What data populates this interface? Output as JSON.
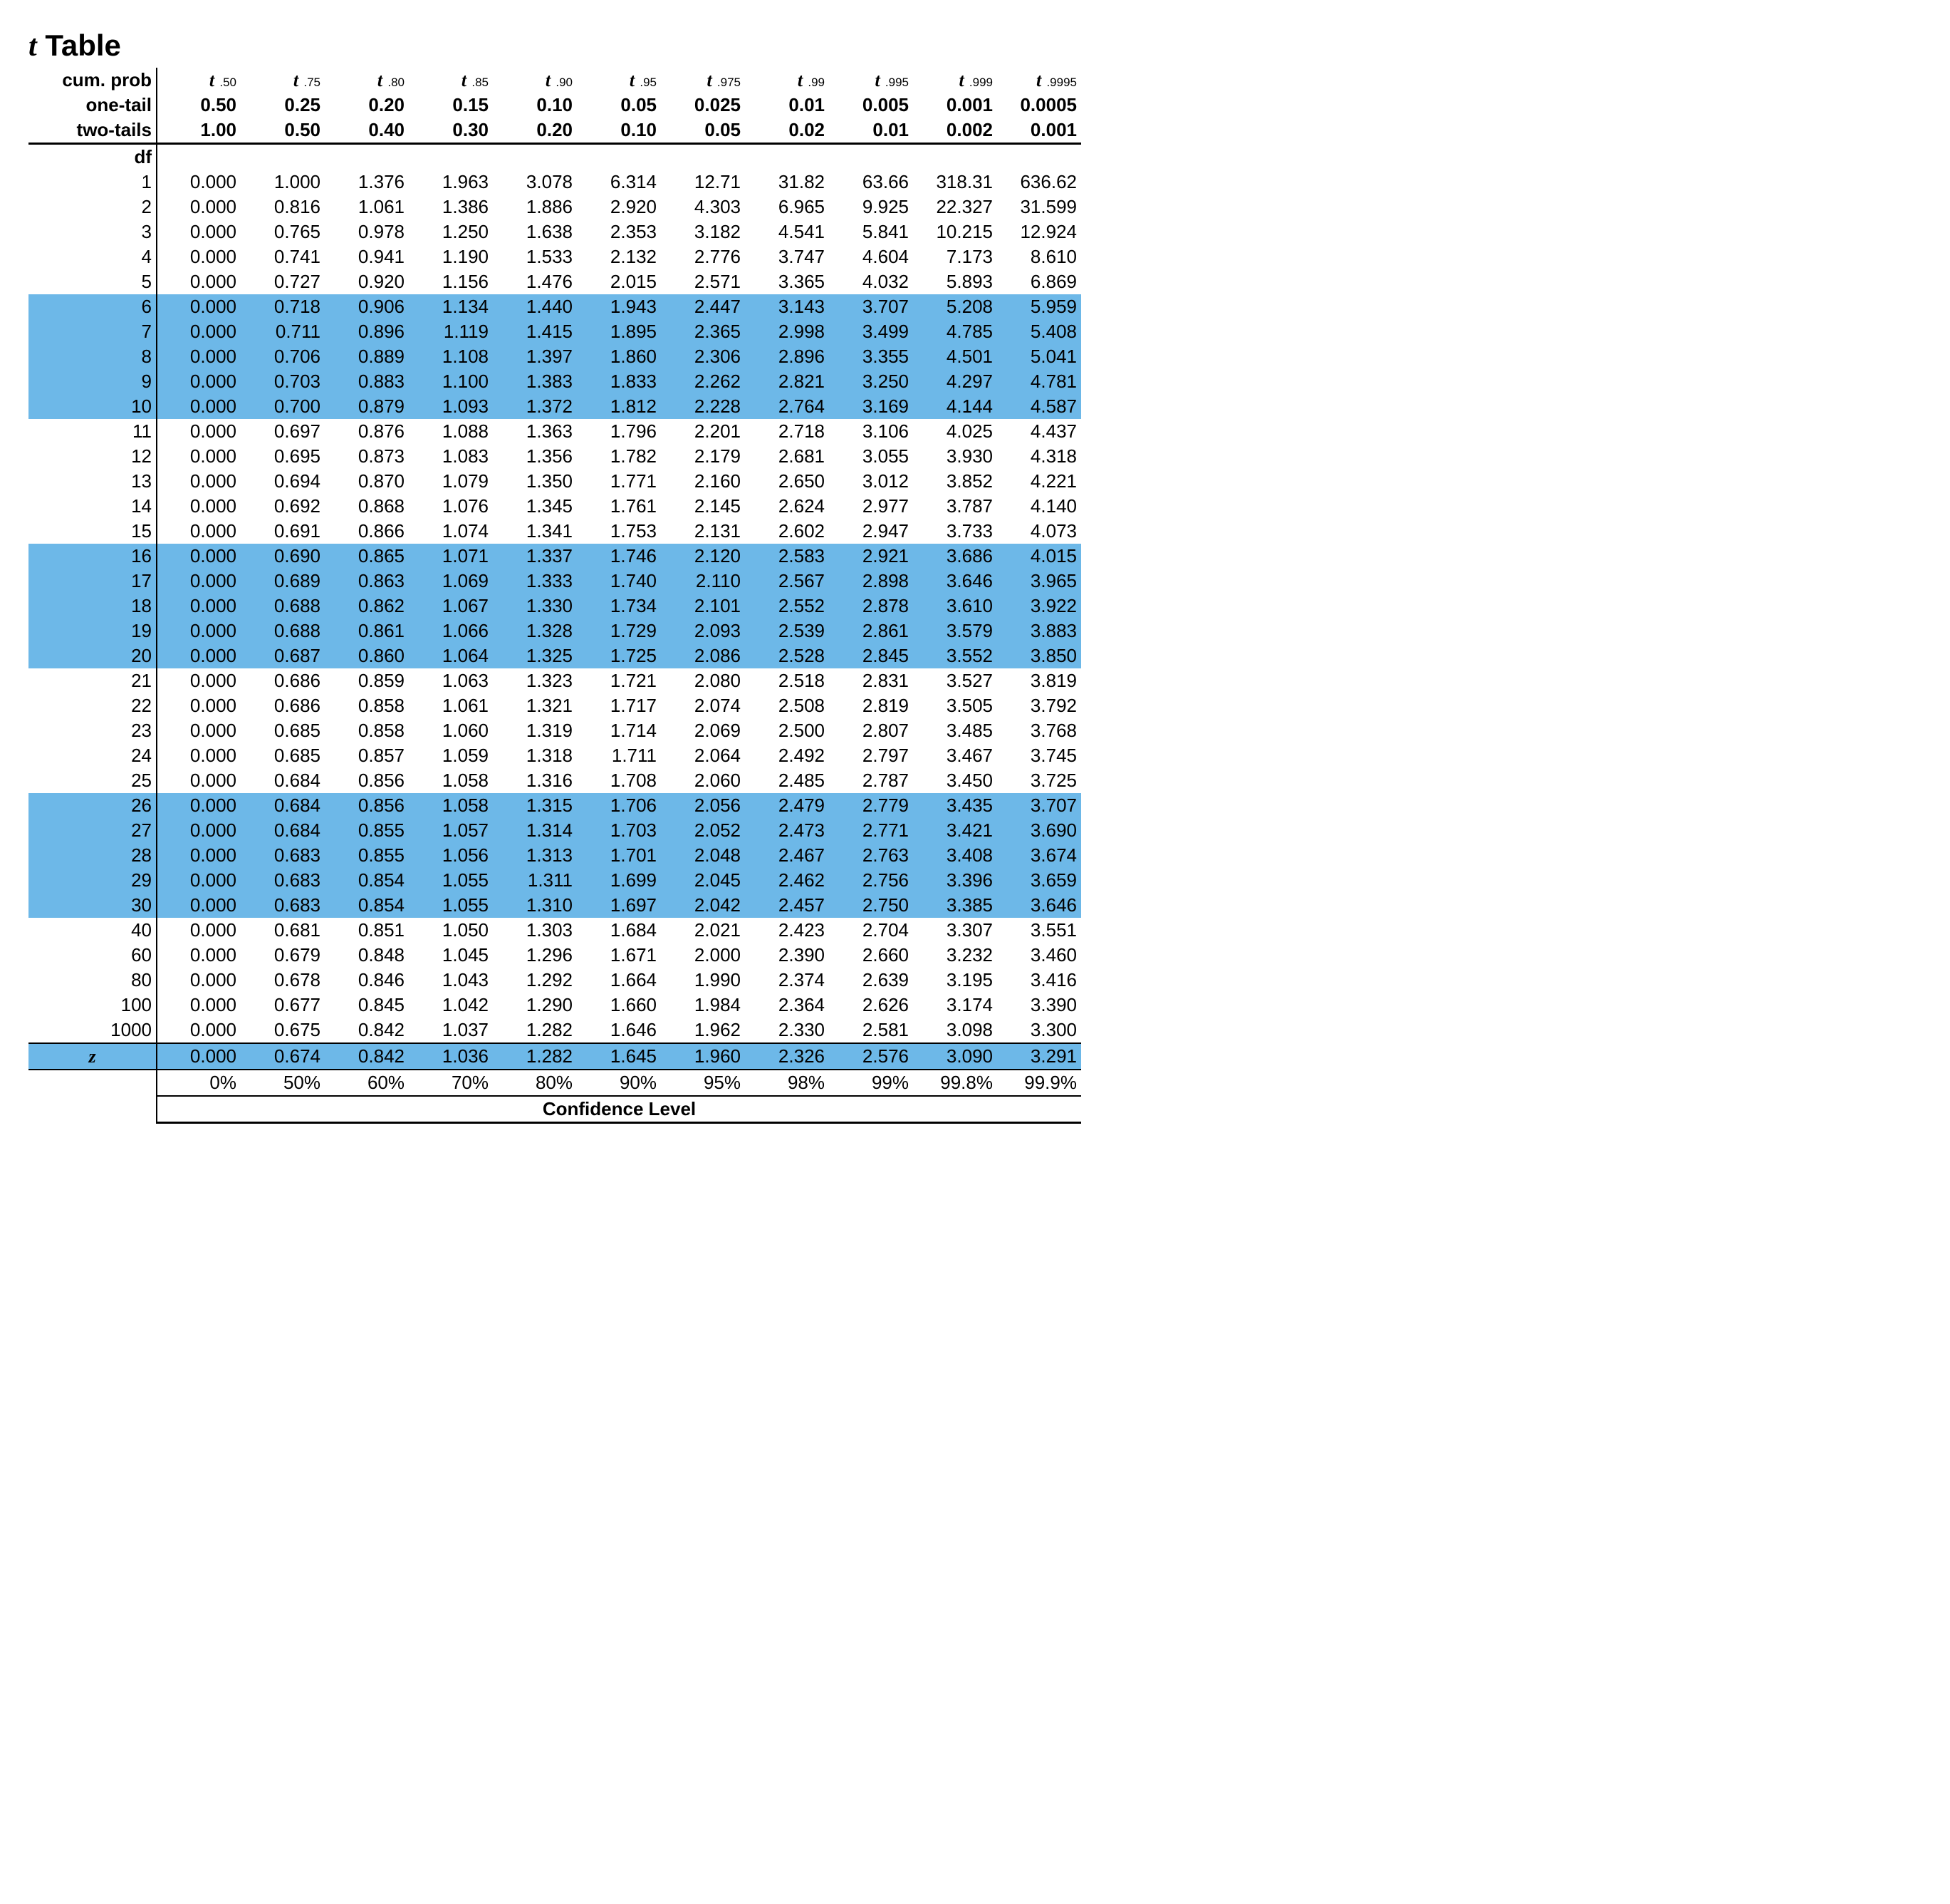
{
  "title_prefix": "t",
  "title_rest": " Table",
  "colors": {
    "highlight": "#6db8e8",
    "text": "#000000",
    "background": "#ffffff",
    "rule": "#000000"
  },
  "typography": {
    "body_font": "Arial",
    "serif_font": "Times New Roman",
    "title_size_pt": 32,
    "body_size_pt": 20,
    "sub_size_pt": 13
  },
  "header": {
    "labels": {
      "cum_prob": "cum. prob",
      "one_tail": "one-tail",
      "two_tails": "two-tails",
      "df": "df",
      "z": "z",
      "conf_level": "Confidence Level"
    },
    "cum_prob_subs": [
      ".50",
      ".75",
      ".80",
      ".85",
      ".90",
      ".95",
      ".975",
      ".99",
      ".995",
      ".999",
      ".9995"
    ],
    "one_tail": [
      "0.50",
      "0.25",
      "0.20",
      "0.15",
      "0.10",
      "0.05",
      "0.025",
      "0.01",
      "0.005",
      "0.001",
      "0.0005"
    ],
    "two_tails": [
      "1.00",
      "0.50",
      "0.40",
      "0.30",
      "0.20",
      "0.10",
      "0.05",
      "0.02",
      "0.01",
      "0.002",
      "0.001"
    ]
  },
  "highlight_bands": [
    [
      6,
      10
    ],
    [
      16,
      20
    ],
    [
      26,
      30
    ]
  ],
  "rows": [
    {
      "df": "1",
      "v": [
        "0.000",
        "1.000",
        "1.376",
        "1.963",
        "3.078",
        "6.314",
        "12.71",
        "31.82",
        "63.66",
        "318.31",
        "636.62"
      ]
    },
    {
      "df": "2",
      "v": [
        "0.000",
        "0.816",
        "1.061",
        "1.386",
        "1.886",
        "2.920",
        "4.303",
        "6.965",
        "9.925",
        "22.327",
        "31.599"
      ]
    },
    {
      "df": "3",
      "v": [
        "0.000",
        "0.765",
        "0.978",
        "1.250",
        "1.638",
        "2.353",
        "3.182",
        "4.541",
        "5.841",
        "10.215",
        "12.924"
      ]
    },
    {
      "df": "4",
      "v": [
        "0.000",
        "0.741",
        "0.941",
        "1.190",
        "1.533",
        "2.132",
        "2.776",
        "3.747",
        "4.604",
        "7.173",
        "8.610"
      ]
    },
    {
      "df": "5",
      "v": [
        "0.000",
        "0.727",
        "0.920",
        "1.156",
        "1.476",
        "2.015",
        "2.571",
        "3.365",
        "4.032",
        "5.893",
        "6.869"
      ]
    },
    {
      "df": "6",
      "v": [
        "0.000",
        "0.718",
        "0.906",
        "1.134",
        "1.440",
        "1.943",
        "2.447",
        "3.143",
        "3.707",
        "5.208",
        "5.959"
      ]
    },
    {
      "df": "7",
      "v": [
        "0.000",
        "0.711",
        "0.896",
        "1.119",
        "1.415",
        "1.895",
        "2.365",
        "2.998",
        "3.499",
        "4.785",
        "5.408"
      ]
    },
    {
      "df": "8",
      "v": [
        "0.000",
        "0.706",
        "0.889",
        "1.108",
        "1.397",
        "1.860",
        "2.306",
        "2.896",
        "3.355",
        "4.501",
        "5.041"
      ]
    },
    {
      "df": "9",
      "v": [
        "0.000",
        "0.703",
        "0.883",
        "1.100",
        "1.383",
        "1.833",
        "2.262",
        "2.821",
        "3.250",
        "4.297",
        "4.781"
      ]
    },
    {
      "df": "10",
      "v": [
        "0.000",
        "0.700",
        "0.879",
        "1.093",
        "1.372",
        "1.812",
        "2.228",
        "2.764",
        "3.169",
        "4.144",
        "4.587"
      ]
    },
    {
      "df": "11",
      "v": [
        "0.000",
        "0.697",
        "0.876",
        "1.088",
        "1.363",
        "1.796",
        "2.201",
        "2.718",
        "3.106",
        "4.025",
        "4.437"
      ]
    },
    {
      "df": "12",
      "v": [
        "0.000",
        "0.695",
        "0.873",
        "1.083",
        "1.356",
        "1.782",
        "2.179",
        "2.681",
        "3.055",
        "3.930",
        "4.318"
      ]
    },
    {
      "df": "13",
      "v": [
        "0.000",
        "0.694",
        "0.870",
        "1.079",
        "1.350",
        "1.771",
        "2.160",
        "2.650",
        "3.012",
        "3.852",
        "4.221"
      ]
    },
    {
      "df": "14",
      "v": [
        "0.000",
        "0.692",
        "0.868",
        "1.076",
        "1.345",
        "1.761",
        "2.145",
        "2.624",
        "2.977",
        "3.787",
        "4.140"
      ]
    },
    {
      "df": "15",
      "v": [
        "0.000",
        "0.691",
        "0.866",
        "1.074",
        "1.341",
        "1.753",
        "2.131",
        "2.602",
        "2.947",
        "3.733",
        "4.073"
      ]
    },
    {
      "df": "16",
      "v": [
        "0.000",
        "0.690",
        "0.865",
        "1.071",
        "1.337",
        "1.746",
        "2.120",
        "2.583",
        "2.921",
        "3.686",
        "4.015"
      ]
    },
    {
      "df": "17",
      "v": [
        "0.000",
        "0.689",
        "0.863",
        "1.069",
        "1.333",
        "1.740",
        "2.110",
        "2.567",
        "2.898",
        "3.646",
        "3.965"
      ]
    },
    {
      "df": "18",
      "v": [
        "0.000",
        "0.688",
        "0.862",
        "1.067",
        "1.330",
        "1.734",
        "2.101",
        "2.552",
        "2.878",
        "3.610",
        "3.922"
      ]
    },
    {
      "df": "19",
      "v": [
        "0.000",
        "0.688",
        "0.861",
        "1.066",
        "1.328",
        "1.729",
        "2.093",
        "2.539",
        "2.861",
        "3.579",
        "3.883"
      ]
    },
    {
      "df": "20",
      "v": [
        "0.000",
        "0.687",
        "0.860",
        "1.064",
        "1.325",
        "1.725",
        "2.086",
        "2.528",
        "2.845",
        "3.552",
        "3.850"
      ]
    },
    {
      "df": "21",
      "v": [
        "0.000",
        "0.686",
        "0.859",
        "1.063",
        "1.323",
        "1.721",
        "2.080",
        "2.518",
        "2.831",
        "3.527",
        "3.819"
      ]
    },
    {
      "df": "22",
      "v": [
        "0.000",
        "0.686",
        "0.858",
        "1.061",
        "1.321",
        "1.717",
        "2.074",
        "2.508",
        "2.819",
        "3.505",
        "3.792"
      ]
    },
    {
      "df": "23",
      "v": [
        "0.000",
        "0.685",
        "0.858",
        "1.060",
        "1.319",
        "1.714",
        "2.069",
        "2.500",
        "2.807",
        "3.485",
        "3.768"
      ]
    },
    {
      "df": "24",
      "v": [
        "0.000",
        "0.685",
        "0.857",
        "1.059",
        "1.318",
        "1.711",
        "2.064",
        "2.492",
        "2.797",
        "3.467",
        "3.745"
      ]
    },
    {
      "df": "25",
      "v": [
        "0.000",
        "0.684",
        "0.856",
        "1.058",
        "1.316",
        "1.708",
        "2.060",
        "2.485",
        "2.787",
        "3.450",
        "3.725"
      ]
    },
    {
      "df": "26",
      "v": [
        "0.000",
        "0.684",
        "0.856",
        "1.058",
        "1.315",
        "1.706",
        "2.056",
        "2.479",
        "2.779",
        "3.435",
        "3.707"
      ]
    },
    {
      "df": "27",
      "v": [
        "0.000",
        "0.684",
        "0.855",
        "1.057",
        "1.314",
        "1.703",
        "2.052",
        "2.473",
        "2.771",
        "3.421",
        "3.690"
      ]
    },
    {
      "df": "28",
      "v": [
        "0.000",
        "0.683",
        "0.855",
        "1.056",
        "1.313",
        "1.701",
        "2.048",
        "2.467",
        "2.763",
        "3.408",
        "3.674"
      ]
    },
    {
      "df": "29",
      "v": [
        "0.000",
        "0.683",
        "0.854",
        "1.055",
        "1.311",
        "1.699",
        "2.045",
        "2.462",
        "2.756",
        "3.396",
        "3.659"
      ]
    },
    {
      "df": "30",
      "v": [
        "0.000",
        "0.683",
        "0.854",
        "1.055",
        "1.310",
        "1.697",
        "2.042",
        "2.457",
        "2.750",
        "3.385",
        "3.646"
      ]
    },
    {
      "df": "40",
      "v": [
        "0.000",
        "0.681",
        "0.851",
        "1.050",
        "1.303",
        "1.684",
        "2.021",
        "2.423",
        "2.704",
        "3.307",
        "3.551"
      ]
    },
    {
      "df": "60",
      "v": [
        "0.000",
        "0.679",
        "0.848",
        "1.045",
        "1.296",
        "1.671",
        "2.000",
        "2.390",
        "2.660",
        "3.232",
        "3.460"
      ]
    },
    {
      "df": "80",
      "v": [
        "0.000",
        "0.678",
        "0.846",
        "1.043",
        "1.292",
        "1.664",
        "1.990",
        "2.374",
        "2.639",
        "3.195",
        "3.416"
      ]
    },
    {
      "df": "100",
      "v": [
        "0.000",
        "0.677",
        "0.845",
        "1.042",
        "1.290",
        "1.660",
        "1.984",
        "2.364",
        "2.626",
        "3.174",
        "3.390"
      ]
    },
    {
      "df": "1000",
      "v": [
        "0.000",
        "0.675",
        "0.842",
        "1.037",
        "1.282",
        "1.646",
        "1.962",
        "2.330",
        "2.581",
        "3.098",
        "3.300"
      ]
    }
  ],
  "z_row": [
    "0.000",
    "0.674",
    "0.842",
    "1.036",
    "1.282",
    "1.645",
    "1.960",
    "2.326",
    "2.576",
    "3.090",
    "3.291"
  ],
  "confidence_pct": [
    "0%",
    "50%",
    "60%",
    "70%",
    "80%",
    "90%",
    "95%",
    "98%",
    "99%",
    "99.8%",
    "99.9%"
  ]
}
